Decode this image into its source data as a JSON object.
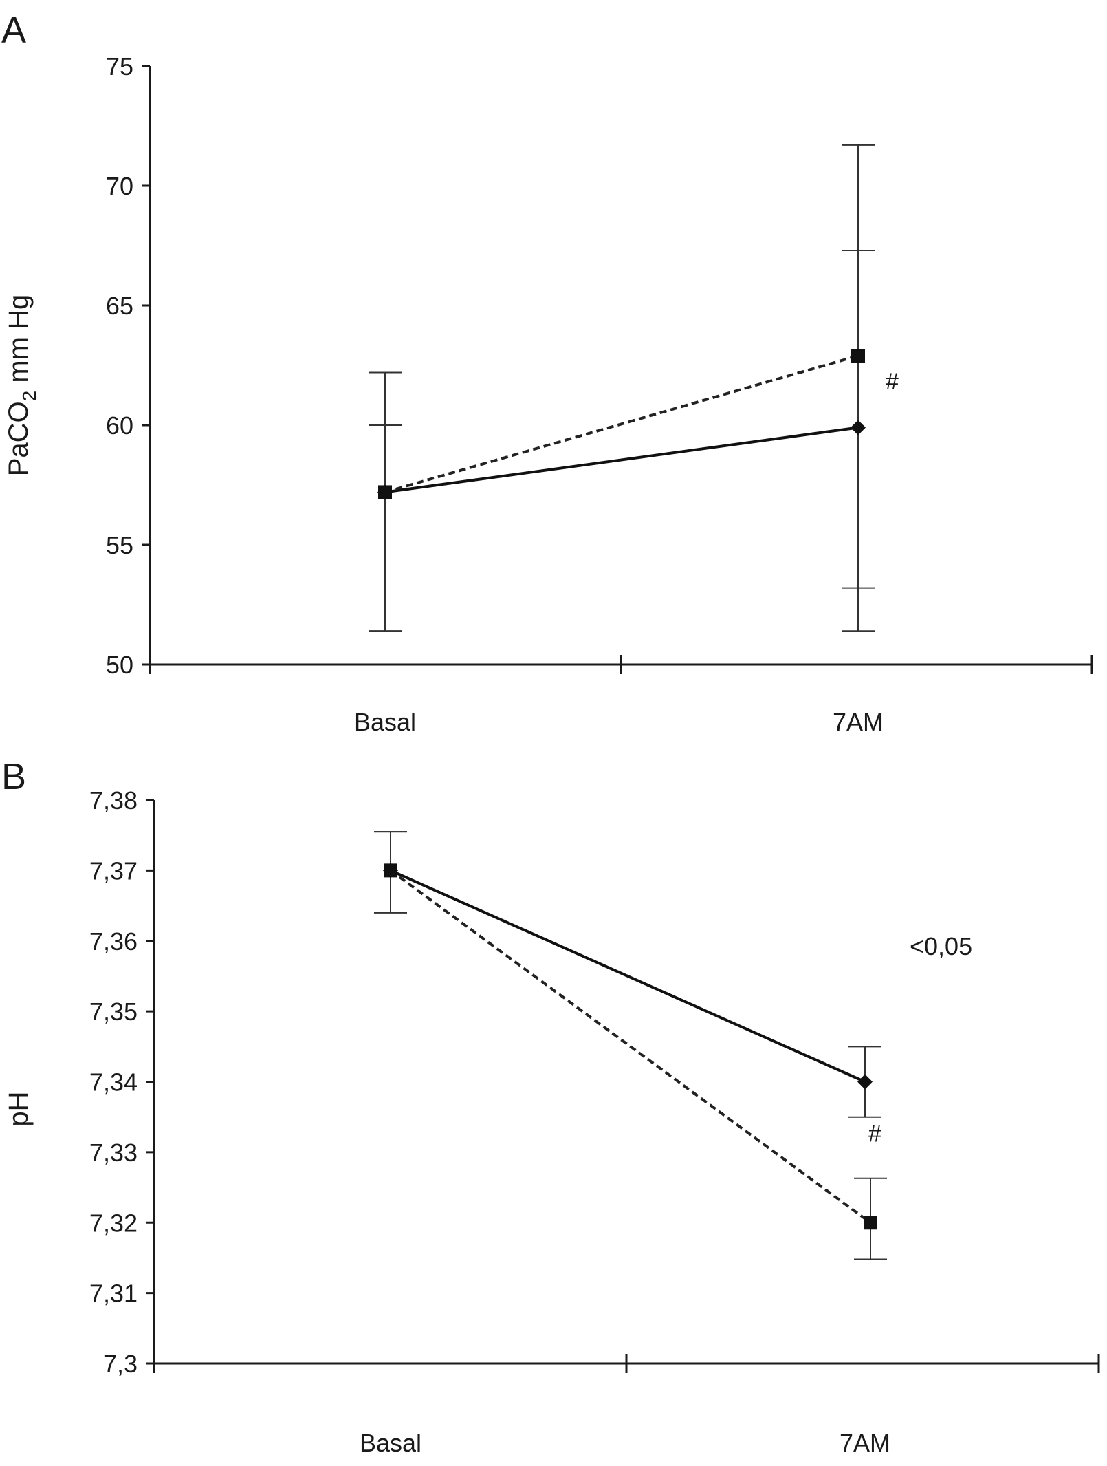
{
  "chart_data": [
    {
      "panel_label": "A",
      "type": "line",
      "categories": [
        "Basal",
        "7AM"
      ],
      "ylabel_main": "PaCO",
      "ylabel_sub": "2",
      "ylabel_rest": " mm Hg",
      "ylim": [
        50,
        75
      ],
      "yticks": [
        "50",
        "55",
        "60",
        "65",
        "70",
        "75"
      ],
      "ytick_values": [
        50,
        55,
        60,
        65,
        70,
        75
      ],
      "series": [
        {
          "style": "solid",
          "marker": "diamond",
          "values": [
            57.2,
            59.9
          ],
          "error_low": [
            51.4,
            53.2
          ],
          "error_high": [
            60.0,
            67.3
          ]
        },
        {
          "style": "dashed",
          "marker": "square",
          "values": [
            57.2,
            62.9
          ],
          "error_low": [
            51.4,
            51.4
          ],
          "error_high": [
            62.2,
            71.7
          ]
        }
      ],
      "annotations": [
        {
          "text": "#",
          "x": "7AM",
          "y": 61.5
        }
      ],
      "grid": false
    },
    {
      "panel_label": "B",
      "type": "line",
      "categories": [
        "Basal",
        "7AM"
      ],
      "ylabel_main": "pH",
      "ylim": [
        7.3,
        7.38
      ],
      "yticks": [
        "7,3",
        "7,31",
        "7,32",
        "7,33",
        "7,34",
        "7,35",
        "7,36",
        "7,37",
        "7,38"
      ],
      "ytick_values": [
        7.3,
        7.31,
        7.32,
        7.33,
        7.34,
        7.35,
        7.36,
        7.37,
        7.38
      ],
      "series": [
        {
          "style": "solid",
          "marker": "diamond",
          "values": [
            7.37,
            7.34
          ],
          "error_low": [
            7.364,
            7.335
          ],
          "error_high": [
            7.3755,
            7.345
          ]
        },
        {
          "style": "dashed",
          "marker": "square",
          "values": [
            7.37,
            7.32
          ],
          "error_low": [
            7.364,
            7.3148
          ],
          "error_high": [
            7.3755,
            7.3263
          ]
        }
      ],
      "annotations": [
        {
          "text": "<0,05",
          "x": "7AM",
          "y": 7.358
        },
        {
          "text": "#",
          "x": "7AM",
          "y": 7.3315
        }
      ],
      "grid": false
    }
  ]
}
